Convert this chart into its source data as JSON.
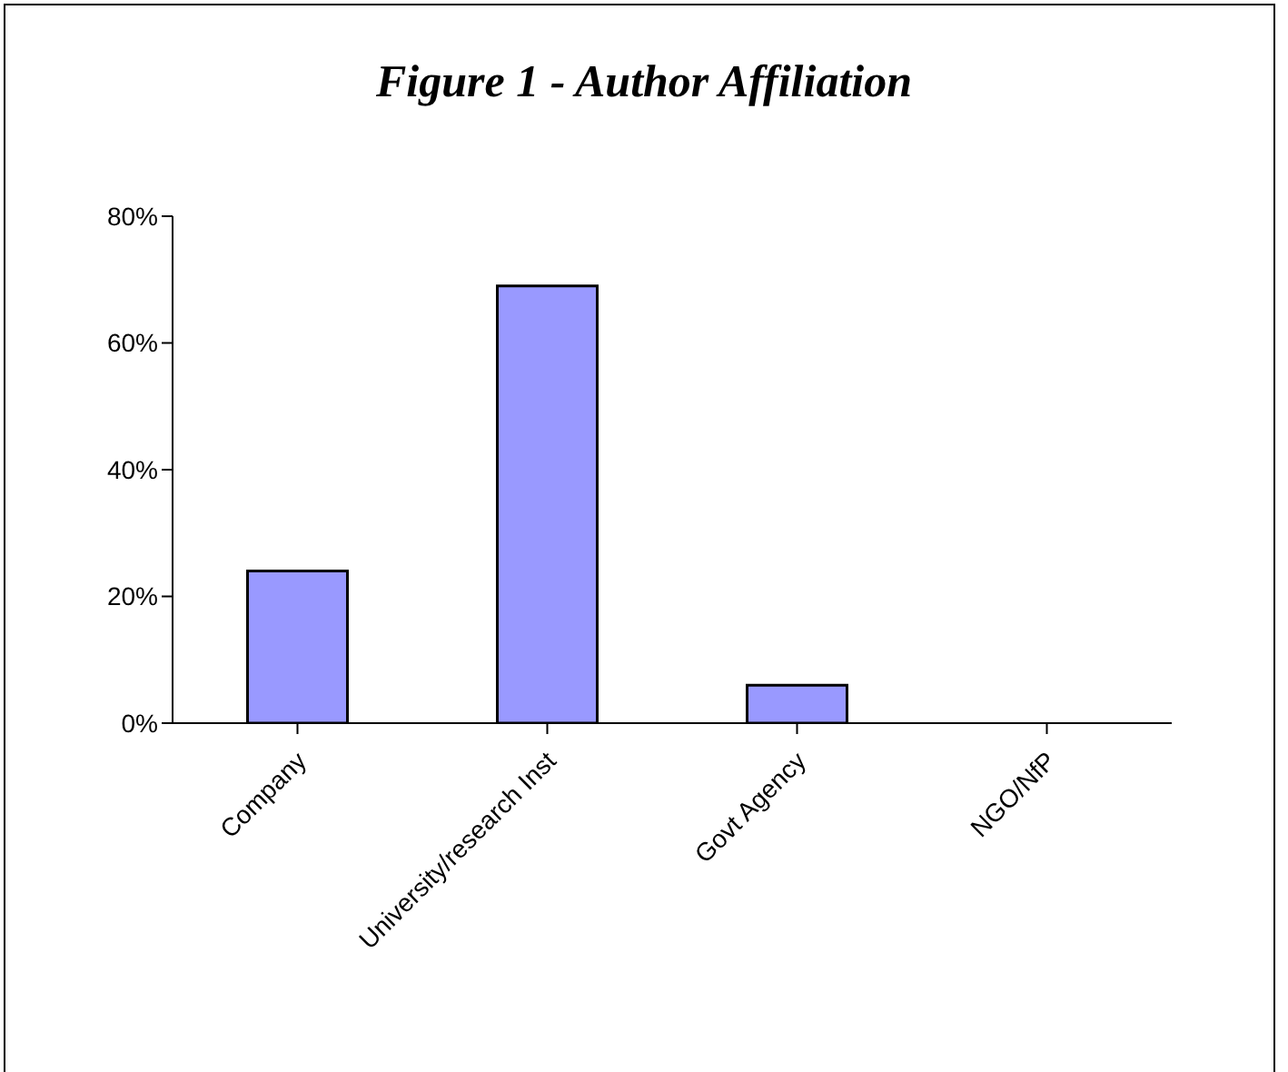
{
  "chart_data": {
    "type": "bar",
    "title": "Figure 1 - Author Affiliation",
    "categories": [
      "Company",
      "University/research Inst",
      "Govt Agency",
      "NGO/NfP"
    ],
    "values": [
      24,
      69,
      6,
      0
    ],
    "color": "#9999ff",
    "ylim": [
      0,
      80
    ],
    "yticks": [
      {
        "value": 0,
        "label": "0%"
      },
      {
        "value": 20,
        "label": "20%"
      },
      {
        "value": 40,
        "label": "40%"
      },
      {
        "value": 60,
        "label": "60%"
      },
      {
        "value": 80,
        "label": "80%"
      }
    ],
    "grid": false,
    "legend": false
  }
}
